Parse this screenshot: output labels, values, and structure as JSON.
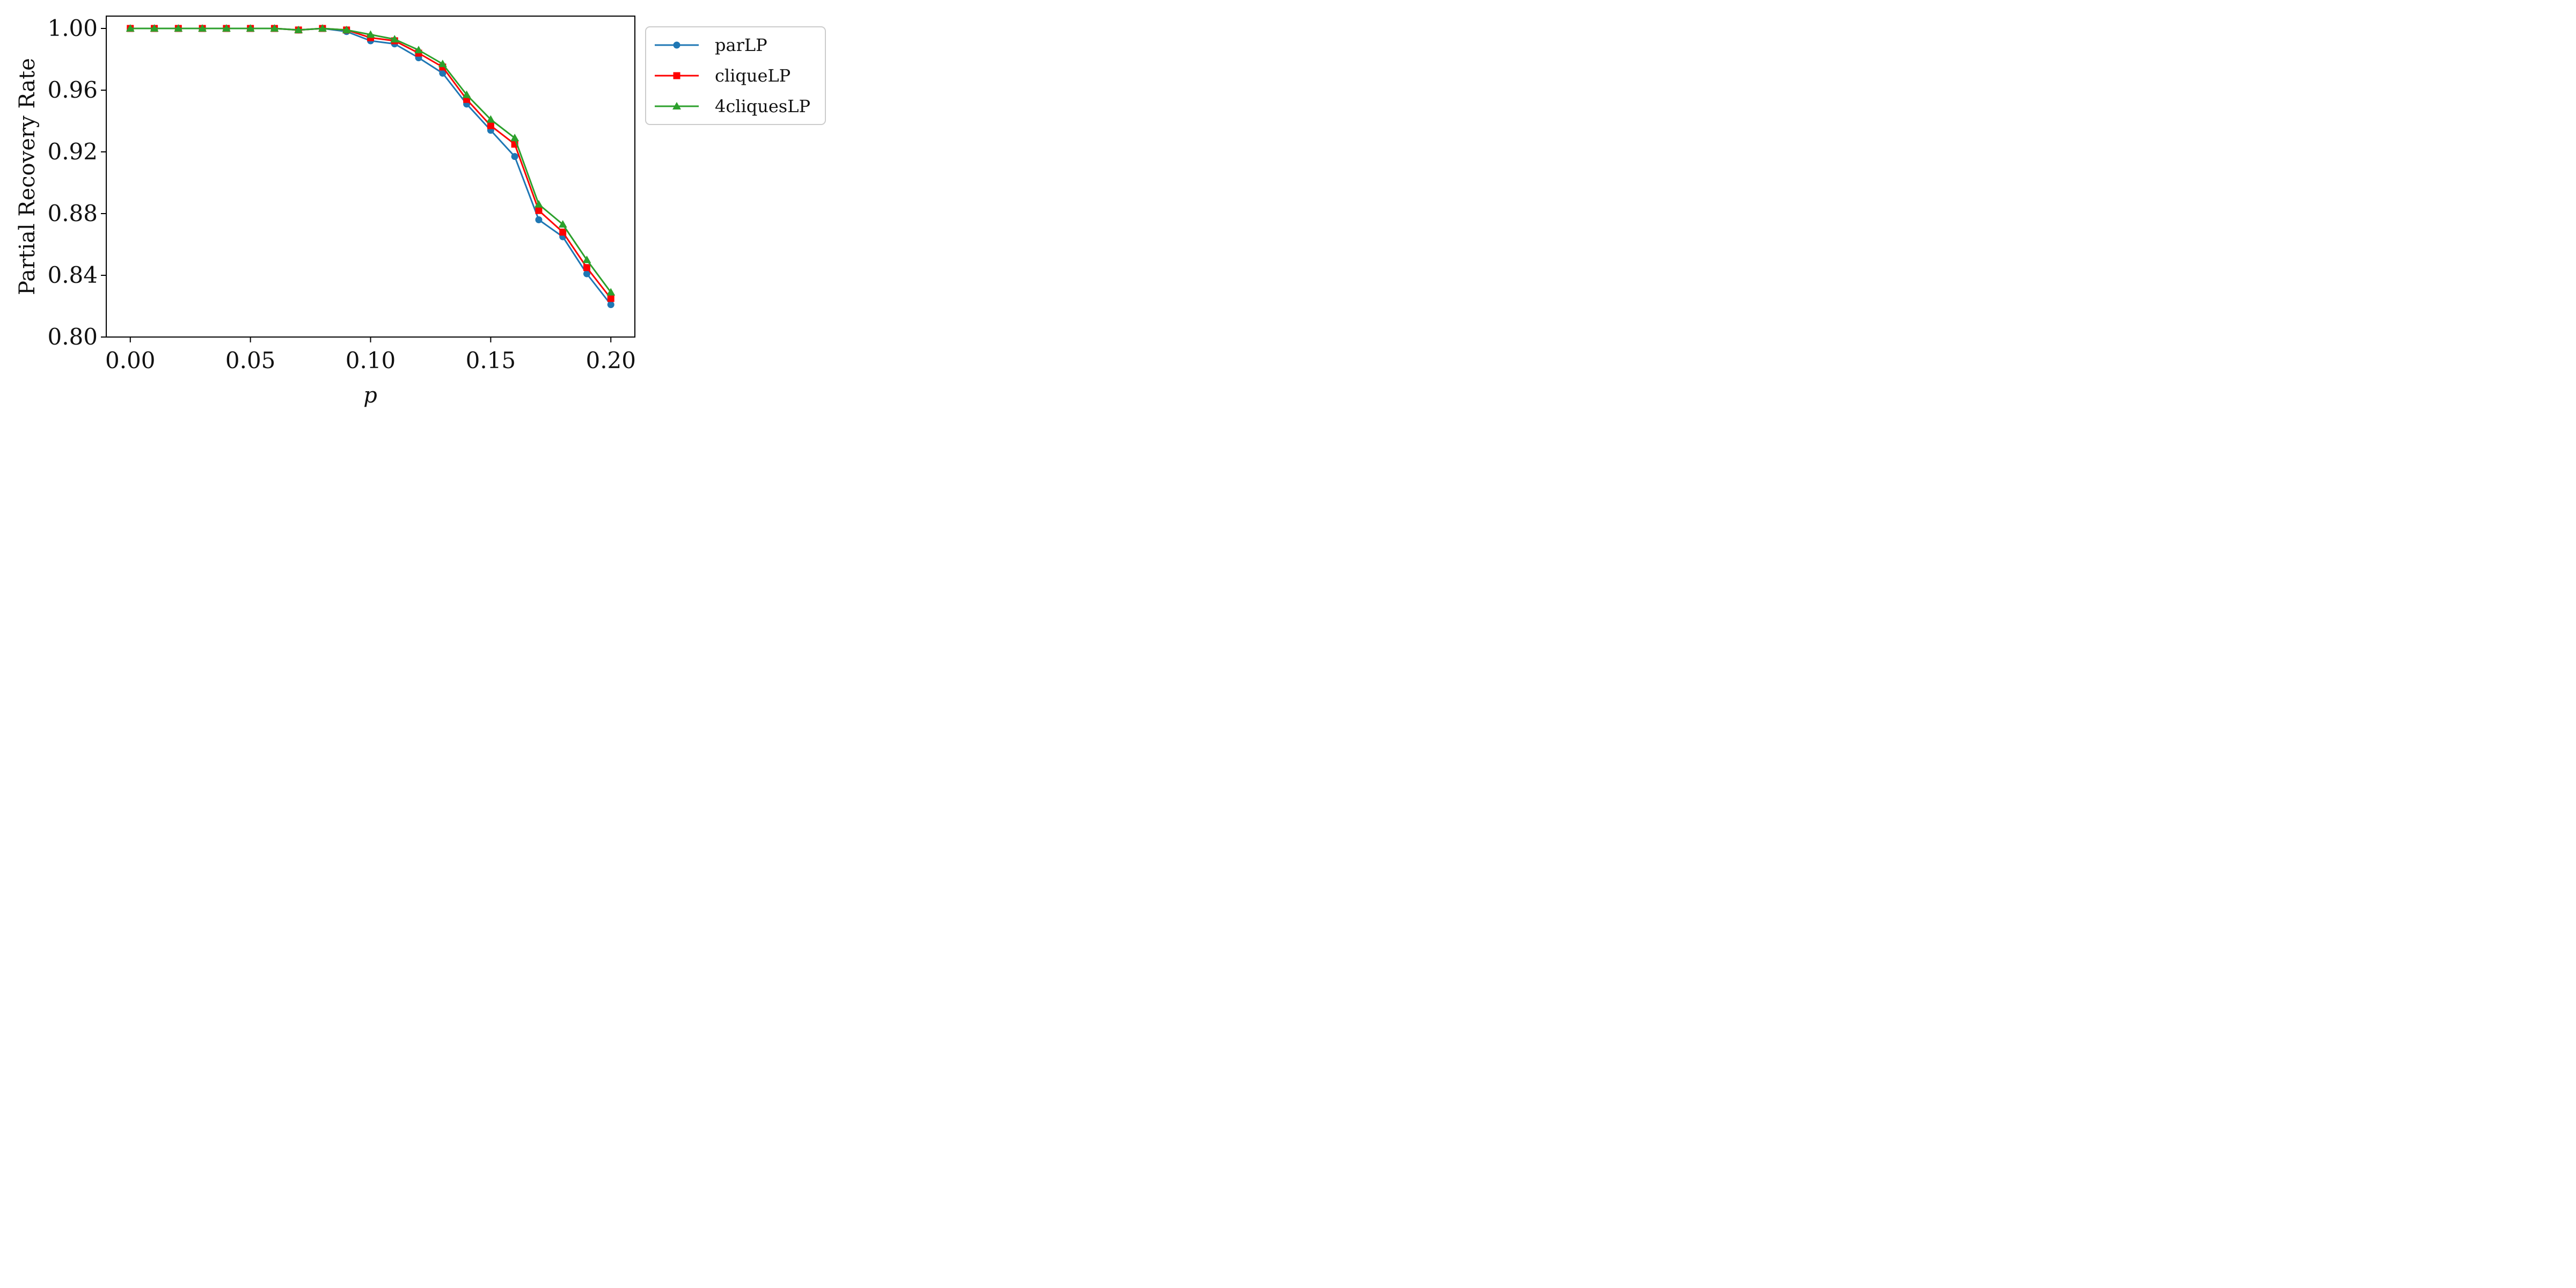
{
  "chart_data": {
    "type": "line",
    "xlabel": "p",
    "ylabel": "Partial Recovery Rate",
    "xlim": [
      -0.01,
      0.21
    ],
    "ylim": [
      0.8,
      1.008
    ],
    "xticks": [
      0.0,
      0.05,
      0.1,
      0.15,
      0.2
    ],
    "xtick_labels": [
      "0.00",
      "0.05",
      "0.10",
      "0.15",
      "0.20"
    ],
    "yticks": [
      0.8,
      0.84,
      0.88,
      0.92,
      0.96,
      1.0
    ],
    "ytick_labels": [
      "0.80",
      "0.84",
      "0.88",
      "0.92",
      "0.96",
      "1.00"
    ],
    "x": [
      0.0,
      0.01,
      0.02,
      0.03,
      0.04,
      0.05,
      0.06,
      0.07,
      0.08,
      0.09,
      0.1,
      0.11,
      0.12,
      0.13,
      0.14,
      0.15,
      0.16,
      0.17,
      0.18,
      0.19,
      0.2
    ],
    "series": [
      {
        "name": "parLP",
        "color": "#1f77b4",
        "marker": "circle",
        "values": [
          1.0,
          1.0,
          1.0,
          1.0,
          1.0,
          1.0,
          1.0,
          0.999,
          1.0,
          0.998,
          0.992,
          0.99,
          0.981,
          0.971,
          0.951,
          0.934,
          0.917,
          0.876,
          0.865,
          0.841,
          0.821
        ]
      },
      {
        "name": "cliqueLP",
        "color": "#ff0000",
        "marker": "square",
        "values": [
          1.0,
          1.0,
          1.0,
          1.0,
          1.0,
          1.0,
          1.0,
          0.999,
          1.0,
          0.999,
          0.994,
          0.992,
          0.984,
          0.975,
          0.954,
          0.937,
          0.925,
          0.882,
          0.868,
          0.845,
          0.825
        ]
      },
      {
        "name": "4cliquesLP",
        "color": "#2ca02c",
        "marker": "triangle",
        "values": [
          1.0,
          1.0,
          1.0,
          1.0,
          1.0,
          1.0,
          1.0,
          0.999,
          1.0,
          0.999,
          0.996,
          0.993,
          0.986,
          0.977,
          0.957,
          0.941,
          0.929,
          0.886,
          0.873,
          0.85,
          0.829
        ]
      }
    ],
    "legend_position": "outside-right-top",
    "grid": false
  }
}
